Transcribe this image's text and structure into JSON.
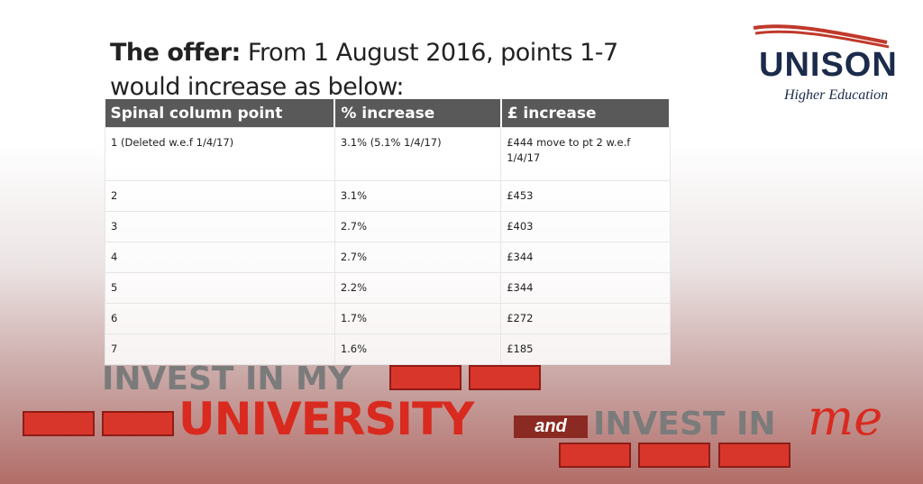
{
  "title": {
    "bold": "The offer:",
    "text": "From 1 August 2016, points 1-7 would increase as below:"
  },
  "table": {
    "header": [
      "Spinal column point",
      "% increase",
      "£ increase"
    ],
    "rows": [
      [
        "1 (Deleted w.e.f 1/4/17)",
        "3.1% (5.1% 1/4/17)",
        "£444 move to pt 2 w.e.f 1/4/17"
      ],
      [
        "2",
        "3.1%",
        "£453"
      ],
      [
        "3",
        "2.7%",
        "£403"
      ],
      [
        "4",
        "2.7%",
        "£344"
      ],
      [
        "5",
        "2.2%",
        "£344"
      ],
      [
        "6",
        "1.7%",
        "£272"
      ],
      [
        "7",
        "1.6%",
        "£185"
      ]
    ]
  },
  "logo": {
    "name": "UNISON",
    "subtitle": "Higher Education"
  },
  "banner": {
    "line1": "INVEST IN MY",
    "line2": "UNIVERSITY",
    "and": "and",
    "line3": "INVEST IN",
    "me": "me"
  }
}
